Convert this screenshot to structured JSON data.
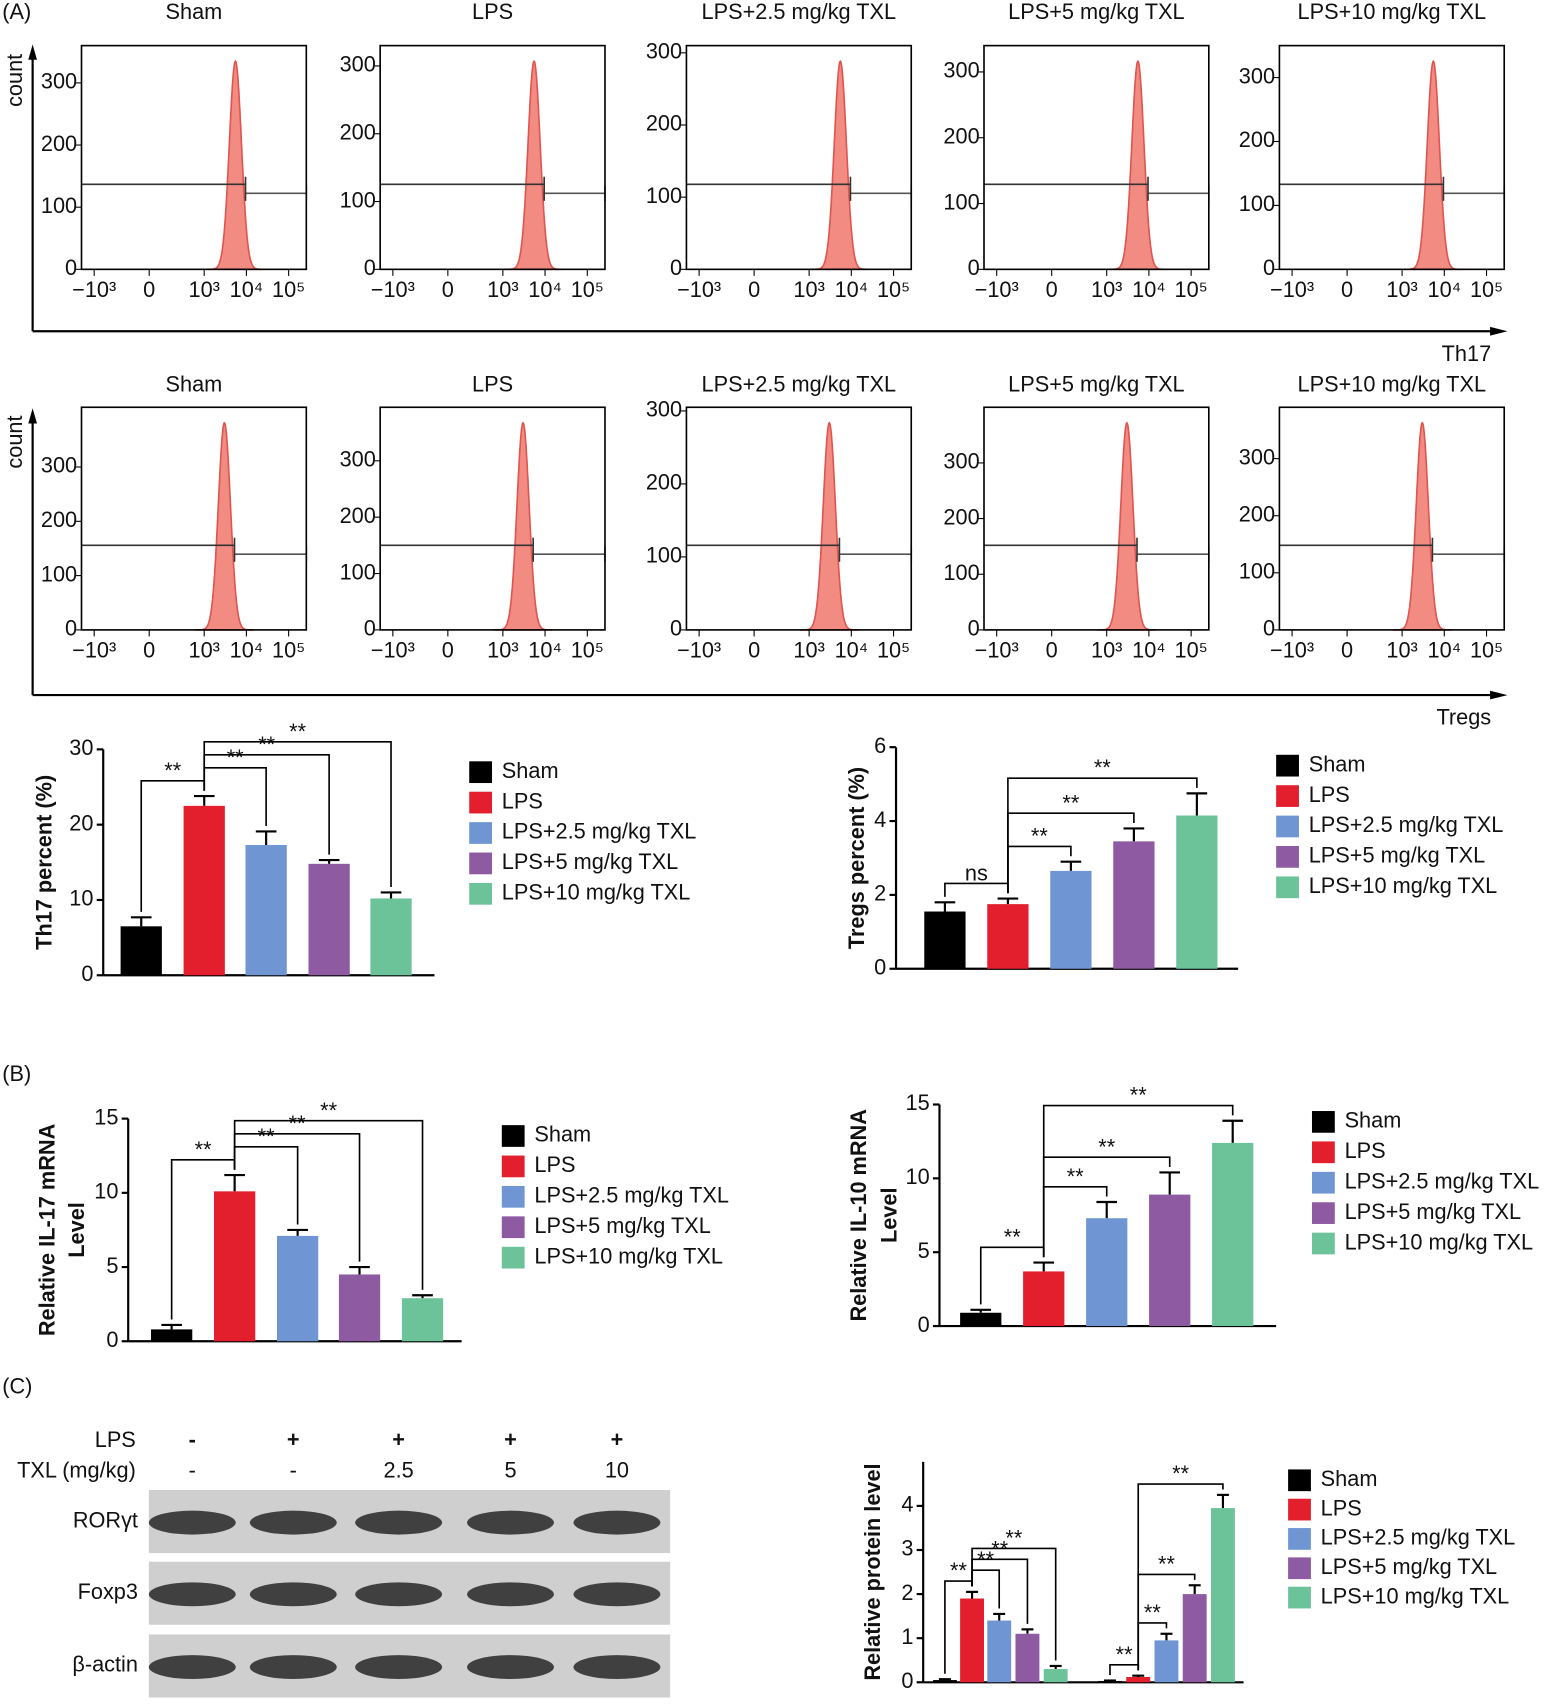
{
  "panel_labels": [
    "(A)",
    "(B)",
    "(C)"
  ],
  "chart_data": [
    {
      "type": "flow",
      "axis_label": "Th17",
      "ylabel": "count",
      "xlim": [
        -2000,
        262144
      ],
      "xticks": [
        {
          "value": -1000,
          "label": "−10³"
        },
        0,
        {
          "value": 1000,
          "label": "10³"
        },
        {
          "value": 10000,
          "label": "10⁴"
        },
        {
          "value": 100000,
          "label": "10⁵"
        }
      ],
      "panels": [
        {
          "title": "Sham",
          "ylim": [
            0,
            360
          ],
          "yticks": [
            0,
            100,
            200,
            300
          ]
        },
        {
          "title": "LPS",
          "ylim": [
            0,
            330
          ],
          "yticks": [
            0,
            100,
            200,
            300
          ]
        },
        {
          "title": "LPS+2.5 mg/kg TXL",
          "ylim": [
            0,
            310
          ],
          "yticks": [
            0,
            100,
            200,
            300
          ]
        },
        {
          "title": "LPS+5 mg/kg TXL",
          "ylim": [
            0,
            340
          ],
          "yticks": [
            0,
            100,
            200,
            300
          ]
        },
        {
          "title": "LPS+10 mg/kg TXL",
          "ylim": [
            0,
            350
          ],
          "yticks": [
            0,
            100,
            200,
            300
          ]
        }
      ]
    },
    {
      "type": "flow",
      "axis_label": "Tregs",
      "ylabel": "count",
      "xlim": [
        -2000,
        262144
      ],
      "xticks": [
        {
          "value": -1000,
          "label": "−10³"
        },
        0,
        {
          "value": 1000,
          "label": "10³"
        },
        {
          "value": 10000,
          "label": "10⁴"
        },
        {
          "value": 100000,
          "label": "10⁵"
        }
      ],
      "panels": [
        {
          "title": "Sham",
          "ylim": [
            0,
            410
          ],
          "yticks": [
            0,
            100,
            200,
            300
          ]
        },
        {
          "title": "LPS",
          "ylim": [
            0,
            395
          ],
          "yticks": [
            0,
            100,
            200,
            300
          ]
        },
        {
          "title": "LPS+2.5 mg/kg TXL",
          "ylim": [
            0,
            305
          ],
          "yticks": [
            0,
            100,
            200,
            300
          ]
        },
        {
          "title": "LPS+5 mg/kg TXL",
          "ylim": [
            0,
            400
          ],
          "yticks": [
            0,
            100,
            200,
            300
          ]
        },
        {
          "title": "LPS+10 mg/kg TXL",
          "ylim": [
            0,
            390
          ],
          "yticks": [
            0,
            100,
            200,
            300
          ]
        }
      ]
    },
    {
      "type": "bar",
      "ylabel": [
        "Th17 percent (%)"
      ],
      "categories": [
        null
      ],
      "ylim": [
        0,
        30
      ],
      "yticks": [
        0,
        10,
        20,
        30
      ],
      "series": [
        {
          "name": "Sham",
          "color": "#000000",
          "values": [
            6.5
          ],
          "errors": [
            1.2
          ]
        },
        {
          "name": "LPS",
          "color": "#e31e2d",
          "values": [
            22.5
          ],
          "errors": [
            1.3
          ]
        },
        {
          "name": "LPS+2.5 mg/kg TXL",
          "color": "#6f96d3",
          "values": [
            17.3
          ],
          "errors": [
            1.8
          ]
        },
        {
          "name": "LPS+5 mg/kg TXL",
          "color": "#8e5aa2",
          "values": [
            14.8
          ],
          "errors": [
            0.5
          ]
        },
        {
          "name": "LPS+10 mg/kg TXL",
          "color": "#6cc39a",
          "values": [
            10.2
          ],
          "errors": [
            0.8
          ]
        }
      ],
      "annotations": [
        {
          "label": "**",
          "category": 0,
          "from": 0,
          "to": 1
        },
        {
          "label": "**",
          "category": 0,
          "from": 1,
          "to": 2
        },
        {
          "label": "**",
          "category": 0,
          "from": 1,
          "to": 3
        },
        {
          "label": "**",
          "category": 0,
          "from": 1,
          "to": 4
        }
      ]
    },
    {
      "type": "bar",
      "ylabel": [
        "Tregs percent (%)"
      ],
      "categories": [
        null
      ],
      "ylim": [
        0,
        6
      ],
      "yticks": [
        0,
        2,
        4,
        6
      ],
      "series": [
        {
          "name": "Sham",
          "color": "#000000",
          "values": [
            1.55
          ],
          "errors": [
            0.25
          ]
        },
        {
          "name": "LPS",
          "color": "#e31e2d",
          "values": [
            1.75
          ],
          "errors": [
            0.15
          ]
        },
        {
          "name": "LPS+2.5 mg/kg TXL",
          "color": "#6f96d3",
          "values": [
            2.65
          ],
          "errors": [
            0.25
          ]
        },
        {
          "name": "LPS+5 mg/kg TXL",
          "color": "#8e5aa2",
          "values": [
            3.45
          ],
          "errors": [
            0.35
          ]
        },
        {
          "name": "LPS+10 mg/kg TXL",
          "color": "#6cc39a",
          "values": [
            4.15
          ],
          "errors": [
            0.6
          ]
        }
      ],
      "annotations": [
        {
          "label": "ns",
          "category": 0,
          "from": 0,
          "to": 1
        },
        {
          "label": "**",
          "category": 0,
          "from": 1,
          "to": 2
        },
        {
          "label": "**",
          "category": 0,
          "from": 1,
          "to": 3
        },
        {
          "label": "**",
          "category": 0,
          "from": 1,
          "to": 4
        }
      ]
    },
    {
      "type": "bar",
      "ylabel": [
        "Relative IL-17 mRNA",
        "Level"
      ],
      "categories": [
        null
      ],
      "ylim": [
        0,
        15
      ],
      "yticks": [
        0,
        5,
        10,
        15
      ],
      "series": [
        {
          "name": "Sham",
          "color": "#000000",
          "values": [
            0.8
          ],
          "errors": [
            0.3
          ]
        },
        {
          "name": "LPS",
          "color": "#e31e2d",
          "values": [
            10.1
          ],
          "errors": [
            1.1
          ]
        },
        {
          "name": "LPS+2.5 mg/kg TXL",
          "color": "#6f96d3",
          "values": [
            7.1
          ],
          "errors": [
            0.4
          ]
        },
        {
          "name": "LPS+5 mg/kg TXL",
          "color": "#8e5aa2",
          "values": [
            4.5
          ],
          "errors": [
            0.5
          ]
        },
        {
          "name": "LPS+10 mg/kg TXL",
          "color": "#6cc39a",
          "values": [
            2.9
          ],
          "errors": [
            0.2
          ]
        }
      ],
      "annotations": [
        {
          "label": "**",
          "category": 0,
          "from": 0,
          "to": 1
        },
        {
          "label": "**",
          "category": 0,
          "from": 1,
          "to": 2
        },
        {
          "label": "**",
          "category": 0,
          "from": 1,
          "to": 3
        },
        {
          "label": "**",
          "category": 0,
          "from": 1,
          "to": 4
        }
      ]
    },
    {
      "type": "bar",
      "ylabel": [
        "Relative IL-10 mRNA",
        "Level"
      ],
      "categories": [
        null
      ],
      "ylim": [
        0,
        15
      ],
      "yticks": [
        0,
        5,
        10,
        15
      ],
      "series": [
        {
          "name": "Sham",
          "color": "#000000",
          "values": [
            0.9
          ],
          "errors": [
            0.2
          ]
        },
        {
          "name": "LPS",
          "color": "#e31e2d",
          "values": [
            3.7
          ],
          "errors": [
            0.6
          ]
        },
        {
          "name": "LPS+2.5 mg/kg TXL",
          "color": "#6f96d3",
          "values": [
            7.3
          ],
          "errors": [
            1.1
          ]
        },
        {
          "name": "LPS+5 mg/kg TXL",
          "color": "#8e5aa2",
          "values": [
            8.9
          ],
          "errors": [
            1.5
          ]
        },
        {
          "name": "LPS+10 mg/kg TXL",
          "color": "#6cc39a",
          "values": [
            12.4
          ],
          "errors": [
            1.5
          ]
        }
      ],
      "annotations": [
        {
          "label": "**",
          "category": 0,
          "from": 0,
          "to": 1
        },
        {
          "label": "**",
          "category": 0,
          "from": 1,
          "to": 2
        },
        {
          "label": "**",
          "category": 0,
          "from": 1,
          "to": 3
        },
        {
          "label": "**",
          "category": 0,
          "from": 1,
          "to": 4
        }
      ]
    },
    {
      "type": "bar",
      "ylabel": [
        "Relative protein level"
      ],
      "categories": [
        null,
        null
      ],
      "ylim": [
        0,
        5
      ],
      "yticks": [
        0,
        1,
        2,
        3,
        4
      ],
      "series": [
        {
          "name": "Sham",
          "color": "#000000",
          "values": [
            0.05,
            0.03
          ],
          "errors": [
            0.02,
            0.01
          ]
        },
        {
          "name": "LPS",
          "color": "#e31e2d",
          "values": [
            1.9,
            0.12
          ],
          "errors": [
            0.15,
            0.03
          ]
        },
        {
          "name": "LPS+2.5 mg/kg TXL",
          "color": "#6f96d3",
          "values": [
            1.4,
            0.95
          ],
          "errors": [
            0.15,
            0.15
          ]
        },
        {
          "name": "LPS+5 mg/kg TXL",
          "color": "#8e5aa2",
          "values": [
            1.1,
            2.0
          ],
          "errors": [
            0.1,
            0.2
          ]
        },
        {
          "name": "LPS+10 mg/kg TXL",
          "color": "#6cc39a",
          "values": [
            0.3,
            3.95
          ],
          "errors": [
            0.07,
            0.3
          ]
        }
      ],
      "annotations": [
        {
          "label": "**",
          "category": 0,
          "from": 0,
          "to": 1
        },
        {
          "label": "**",
          "category": 0,
          "from": 1,
          "to": 2
        },
        {
          "label": "**",
          "category": 0,
          "from": 1,
          "to": 3
        },
        {
          "label": "**",
          "category": 0,
          "from": 1,
          "to": 4
        },
        {
          "label": "**",
          "category": 1,
          "from": 0,
          "to": 1
        },
        {
          "label": "**",
          "category": 1,
          "from": 1,
          "to": 2
        },
        {
          "label": "**",
          "category": 1,
          "from": 1,
          "to": 3
        },
        {
          "label": "**",
          "category": 1,
          "from": 1,
          "to": 4
        }
      ]
    }
  ],
  "blot": {
    "header": [
      {
        "label": "LPS",
        "lanes": [
          "-",
          "+",
          "+",
          "+",
          "+"
        ]
      },
      {
        "label": "TXL (mg/kg)",
        "lanes": [
          "-",
          "-",
          "2.5",
          "5",
          "10"
        ]
      }
    ],
    "rows": [
      "RORγt",
      "Foxp3",
      "β-actin"
    ]
  }
}
